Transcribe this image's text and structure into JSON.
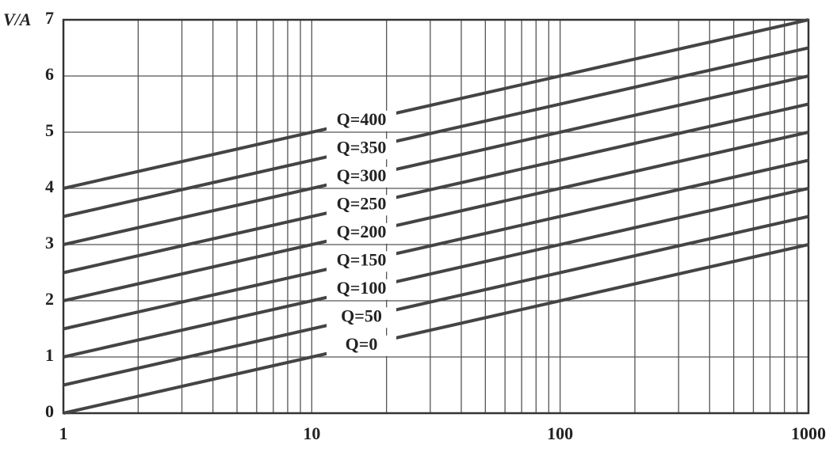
{
  "chart_data": {
    "type": "line",
    "y_label": "V/A",
    "x": [
      1,
      1000
    ],
    "series": [
      {
        "name": "Q=400",
        "color": "#444444",
        "values": [
          4,
          7
        ]
      },
      {
        "name": "Q=350",
        "color": "#444444",
        "values": [
          3.5,
          6.5
        ]
      },
      {
        "name": "Q=300",
        "color": "#444444",
        "values": [
          3,
          6
        ]
      },
      {
        "name": "Q=250",
        "color": "#444444",
        "values": [
          2.5,
          5.5
        ]
      },
      {
        "name": "Q=200",
        "color": "#444444",
        "values": [
          2,
          5
        ]
      },
      {
        "name": "Q=150",
        "color": "#444444",
        "values": [
          1.5,
          4.5
        ]
      },
      {
        "name": "Q=100",
        "color": "#444444",
        "values": [
          1,
          4
        ]
      },
      {
        "name": "Q=50",
        "color": "#444444",
        "values": [
          0.5,
          3.5
        ]
      },
      {
        "name": "Q=0",
        "color": "#444444",
        "values": [
          0,
          3
        ]
      }
    ],
    "xlim": [
      1,
      1000
    ],
    "ylim": [
      0,
      7
    ],
    "xlog": true,
    "grid": true,
    "xticks": [
      1,
      10,
      100,
      1000
    ],
    "x_minor_ticks": [
      2,
      3,
      4,
      5,
      6,
      7,
      8,
      9,
      20,
      30,
      40,
      50,
      60,
      70,
      80,
      90,
      200,
      300,
      400,
      500,
      600,
      700,
      800,
      900
    ],
    "yticks": [
      0,
      1,
      2,
      3,
      4,
      5,
      6,
      7
    ]
  }
}
